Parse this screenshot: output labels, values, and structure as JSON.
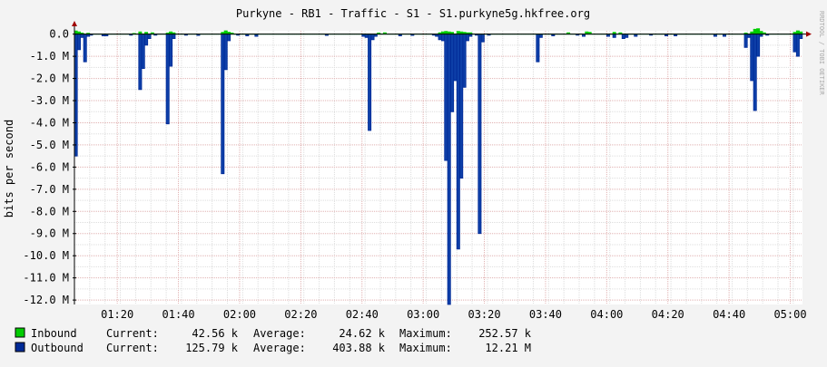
{
  "chart_data": {
    "type": "area",
    "title": "Purkyne - RB1 - Traffic - S1 - S1.purkyne5g.hkfree.org",
    "ylabel": "bits per second",
    "watermark": "RRDTOOL / TOBI OETIKER",
    "ylim": [
      -12.2,
      0.15
    ],
    "y_ticks": [
      {
        "value": 0,
        "label": "0.0"
      },
      {
        "value": -1,
        "label": "-1.0 M"
      },
      {
        "value": -2,
        "label": "-2.0 M"
      },
      {
        "value": -3,
        "label": "-3.0 M"
      },
      {
        "value": -4,
        "label": "-4.0 M"
      },
      {
        "value": -5,
        "label": "-5.0 M"
      },
      {
        "value": -6,
        "label": "-6.0 M"
      },
      {
        "value": -7,
        "label": "-7.0 M"
      },
      {
        "value": -8,
        "label": "-8.0 M"
      },
      {
        "value": -9,
        "label": "-9.0 M"
      },
      {
        "value": -10,
        "label": "-10.0 M"
      },
      {
        "value": -11,
        "label": "-11.0 M"
      },
      {
        "value": -12,
        "label": "-12.0 M"
      }
    ],
    "xlim": [
      "01:06",
      "05:04"
    ],
    "x_ticks": [
      {
        "value": "01:20",
        "label": "01:20"
      },
      {
        "value": "01:40",
        "label": "01:40"
      },
      {
        "value": "02:00",
        "label": "02:00"
      },
      {
        "value": "02:20",
        "label": "02:20"
      },
      {
        "value": "02:40",
        "label": "02:40"
      },
      {
        "value": "03:00",
        "label": "03:00"
      },
      {
        "value": "03:20",
        "label": "03:20"
      },
      {
        "value": "03:40",
        "label": "03:40"
      },
      {
        "value": "04:00",
        "label": "04:00"
      },
      {
        "value": "04:20",
        "label": "04:20"
      },
      {
        "value": "04:40",
        "label": "04:40"
      },
      {
        "value": "05:00",
        "label": "05:00"
      }
    ],
    "grid": true,
    "colors": {
      "inbound": "#00cc00",
      "outbound": "#002a97",
      "outbound_fill": "#0d3fa8",
      "background": "#f3f3f3",
      "plot_background": "#ffffff",
      "grid_major": "#e0b0b0",
      "grid_minor": "#dddddd",
      "axis": "#000000",
      "arrow": "#a00000"
    },
    "series": [
      {
        "name": "Inbound",
        "color": "#00cc00",
        "stats": {
          "current": "42.56 k",
          "average": "24.62 k",
          "maximum": "252.57 k"
        },
        "points": [
          [
            "01:06",
            0.14
          ],
          [
            "01:07",
            0.1
          ],
          [
            "01:08",
            0.05
          ],
          [
            "01:10",
            0.04
          ],
          [
            "01:25",
            0.03
          ],
          [
            "01:27",
            0.1
          ],
          [
            "01:29",
            0.08
          ],
          [
            "01:31",
            0.06
          ],
          [
            "01:36",
            0.05
          ],
          [
            "01:37",
            0.1
          ],
          [
            "01:38",
            0.06
          ],
          [
            "01:54",
            0.08
          ],
          [
            "01:55",
            0.15
          ],
          [
            "01:56",
            0.09
          ],
          [
            "01:57",
            0.05
          ],
          [
            "02:45",
            0.05
          ],
          [
            "02:47",
            0.06
          ],
          [
            "03:05",
            0.06
          ],
          [
            "03:06",
            0.1
          ],
          [
            "03:07",
            0.12
          ],
          [
            "03:08",
            0.1
          ],
          [
            "03:09",
            0.08
          ],
          [
            "03:11",
            0.12
          ],
          [
            "03:12",
            0.1
          ],
          [
            "03:13",
            0.08
          ],
          [
            "03:14",
            0.06
          ],
          [
            "03:15",
            0.06
          ],
          [
            "03:47",
            0.06
          ],
          [
            "03:53",
            0.1
          ],
          [
            "03:54",
            0.08
          ],
          [
            "04:02",
            0.08
          ],
          [
            "04:04",
            0.06
          ],
          [
            "04:45",
            0.05
          ],
          [
            "04:47",
            0.1
          ],
          [
            "04:48",
            0.22
          ],
          [
            "04:49",
            0.25
          ],
          [
            "04:50",
            0.12
          ],
          [
            "04:51",
            0.06
          ],
          [
            "05:01",
            0.08
          ],
          [
            "05:02",
            0.15
          ],
          [
            "05:03",
            0.1
          ]
        ]
      },
      {
        "name": "Outbound",
        "color": "#002a97",
        "stats": {
          "current": "125.79 k",
          "average": "403.88 k",
          "maximum": "12.21 M"
        },
        "points": [
          [
            "01:06",
            -5.5
          ],
          [
            "01:07",
            -0.7
          ],
          [
            "01:08",
            -0.15
          ],
          [
            "01:09",
            -1.25
          ],
          [
            "01:10",
            -0.1
          ],
          [
            "01:11",
            -0.05
          ],
          [
            "01:15",
            -0.08
          ],
          [
            "01:16",
            -0.08
          ],
          [
            "01:24",
            -0.05
          ],
          [
            "01:27",
            -2.5
          ],
          [
            "01:28",
            -1.55
          ],
          [
            "01:29",
            -0.5
          ],
          [
            "01:30",
            -0.2
          ],
          [
            "01:32",
            -0.05
          ],
          [
            "01:36",
            -4.05
          ],
          [
            "01:37",
            -1.45
          ],
          [
            "01:38",
            -0.2
          ],
          [
            "01:42",
            -0.05
          ],
          [
            "01:46",
            -0.06
          ],
          [
            "01:54",
            -6.3
          ],
          [
            "01:55",
            -1.6
          ],
          [
            "01:56",
            -0.3
          ],
          [
            "01:59",
            -0.05
          ],
          [
            "02:02",
            -0.08
          ],
          [
            "02:05",
            -0.1
          ],
          [
            "02:28",
            -0.06
          ],
          [
            "02:40",
            -0.1
          ],
          [
            "02:41",
            -0.15
          ],
          [
            "02:42",
            -4.35
          ],
          [
            "02:43",
            -0.25
          ],
          [
            "02:44",
            -0.1
          ],
          [
            "02:52",
            -0.08
          ],
          [
            "02:56",
            -0.06
          ],
          [
            "03:03",
            -0.05
          ],
          [
            "03:04",
            -0.1
          ],
          [
            "03:05",
            -0.25
          ],
          [
            "03:06",
            -0.3
          ],
          [
            "03:07",
            -5.7
          ],
          [
            "03:08",
            -12.2
          ],
          [
            "03:09",
            -3.5
          ],
          [
            "03:10",
            -2.1
          ],
          [
            "03:11",
            -9.7
          ],
          [
            "03:12",
            -6.5
          ],
          [
            "03:13",
            -2.4
          ],
          [
            "03:14",
            -0.3
          ],
          [
            "03:15",
            -0.1
          ],
          [
            "03:17",
            -0.05
          ],
          [
            "03:18",
            -9.0
          ],
          [
            "03:19",
            -0.35
          ],
          [
            "03:21",
            -0.05
          ],
          [
            "03:37",
            -1.25
          ],
          [
            "03:38",
            -0.15
          ],
          [
            "03:42",
            -0.08
          ],
          [
            "03:50",
            -0.05
          ],
          [
            "03:52",
            -0.1
          ],
          [
            "04:00",
            -0.1
          ],
          [
            "04:02",
            -0.15
          ],
          [
            "04:05",
            -0.2
          ],
          [
            "04:06",
            -0.15
          ],
          [
            "04:09",
            -0.1
          ],
          [
            "04:14",
            -0.05
          ],
          [
            "04:19",
            -0.08
          ],
          [
            "04:22",
            -0.08
          ],
          [
            "04:35",
            -0.1
          ],
          [
            "04:38",
            -0.1
          ],
          [
            "04:45",
            -0.6
          ],
          [
            "04:46",
            -0.15
          ],
          [
            "04:47",
            -2.1
          ],
          [
            "04:48",
            -3.45
          ],
          [
            "04:49",
            -1.0
          ],
          [
            "04:50",
            -0.1
          ],
          [
            "04:52",
            -0.05
          ],
          [
            "05:01",
            -0.8
          ],
          [
            "05:02",
            -1.0
          ],
          [
            "05:03",
            -0.2
          ]
        ]
      }
    ]
  },
  "legend": {
    "rows": [
      {
        "name": "Inbound",
        "color": "#00cc00",
        "current_label": "Current:",
        "current": "42.56 k",
        "average_label": "Average:",
        "average": "24.62 k",
        "maximum_label": "Maximum:",
        "maximum": "252.57 k"
      },
      {
        "name": "Outbound",
        "color": "#002a97",
        "current_label": "Current:",
        "current": "125.79 k",
        "average_label": "Average:",
        "average": "403.88 k",
        "maximum_label": "Maximum:",
        "maximum": "12.21 M"
      }
    ]
  }
}
